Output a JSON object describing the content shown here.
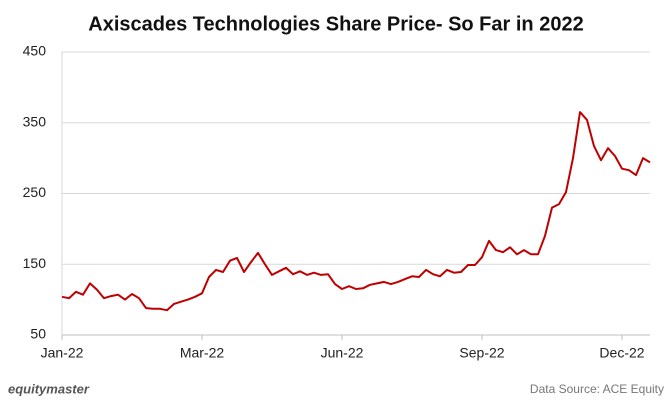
{
  "chart_data": {
    "type": "line",
    "title": "Axiscades Technologies Share Price- So Far in 2022",
    "brand": "equitymaster",
    "source": "Data Source: ACE Equity",
    "color": "#c00000",
    "categories": [
      "Jan-22",
      null,
      null,
      null,
      null,
      null,
      null,
      null,
      null,
      null,
      null,
      null,
      null,
      null,
      null,
      null,
      null,
      null,
      null,
      null,
      "Mar-22",
      null,
      null,
      null,
      null,
      null,
      null,
      null,
      null,
      null,
      null,
      null,
      null,
      null,
      null,
      null,
      null,
      null,
      null,
      null,
      "Jun-22",
      null,
      null,
      null,
      null,
      null,
      null,
      null,
      null,
      null,
      null,
      null,
      null,
      null,
      null,
      null,
      null,
      null,
      null,
      null,
      "Sep-22",
      null,
      null,
      null,
      null,
      null,
      null,
      null,
      null,
      null,
      null,
      null,
      null,
      null,
      null,
      null,
      null,
      null,
      null,
      null,
      "Dec-22",
      null,
      null,
      null,
      null
    ],
    "values": [
      104,
      102,
      111,
      107,
      123,
      114,
      102,
      105,
      107,
      100,
      108,
      102,
      88,
      87,
      87,
      85,
      94,
      97,
      100,
      104,
      109,
      132,
      142,
      139,
      155,
      159,
      139,
      153,
      166,
      150,
      135,
      140,
      145,
      136,
      140,
      135,
      138,
      135,
      136,
      122,
      115,
      119,
      115,
      116,
      121,
      123,
      125,
      122,
      125,
      129,
      133,
      132,
      142,
      136,
      133,
      142,
      138,
      139,
      149,
      149,
      160,
      183,
      170,
      167,
      174,
      164,
      170,
      164,
      164,
      190,
      230,
      235,
      252,
      300,
      365,
      354,
      317,
      297,
      314,
      303,
      285,
      283,
      276,
      300,
      294
    ],
    "ylim": [
      50,
      450
    ],
    "yticks": [
      50,
      150,
      250,
      350,
      450
    ],
    "grid": true
  }
}
